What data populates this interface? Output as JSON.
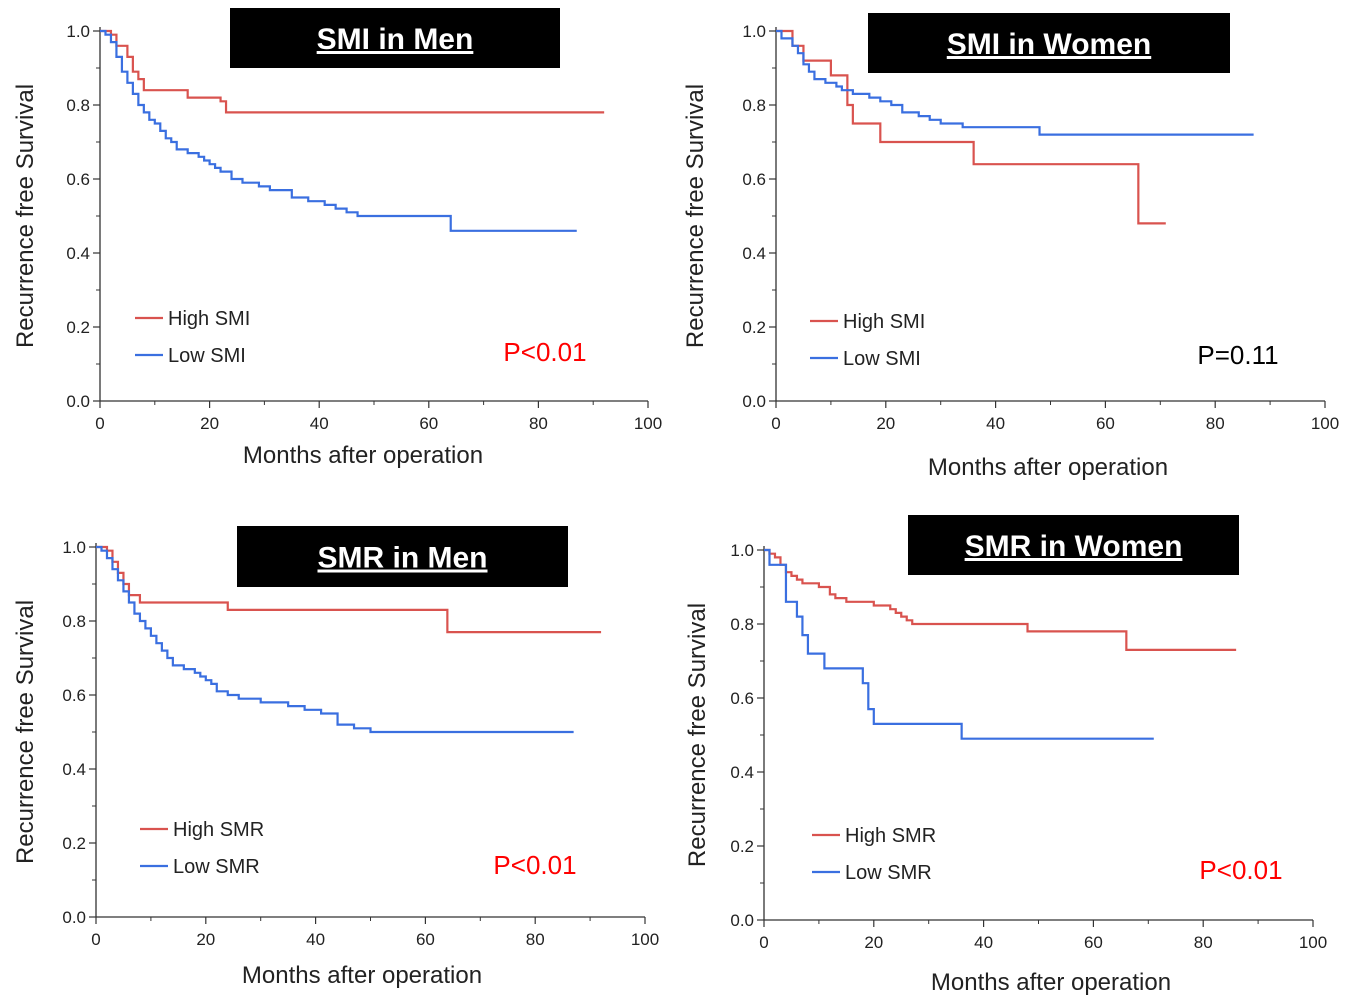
{
  "chart_data": [
    {
      "type": "line",
      "title": "SMI in Men",
      "xlabel": "Months after operation",
      "ylabel": "Recurrence free Survival",
      "xlim": [
        0,
        100
      ],
      "ylim": [
        0,
        1
      ],
      "xticks": [
        "0",
        "20",
        "40",
        "60",
        "80",
        "100"
      ],
      "yticks": [
        "0.0",
        "0.2",
        "0.4",
        "0.6",
        "0.8",
        "1.0"
      ],
      "legend_position": "lower-left",
      "p_value": "P<0.01",
      "p_color": "#ff0000",
      "series": [
        {
          "name": "High SMI",
          "color": "#d9534f",
          "x": [
            0,
            1,
            2,
            3,
            5,
            6,
            7,
            8,
            10,
            12,
            14,
            16,
            18,
            20,
            22,
            23,
            92
          ],
          "y": [
            1.0,
            1.0,
            0.99,
            0.96,
            0.93,
            0.89,
            0.87,
            0.84,
            0.84,
            0.84,
            0.84,
            0.82,
            0.82,
            0.82,
            0.81,
            0.78,
            0.78
          ]
        },
        {
          "name": "Low SMI",
          "color": "#3a6fe0",
          "x": [
            0,
            1,
            2,
            3,
            4,
            5,
            6,
            7,
            8,
            9,
            10,
            11,
            12,
            13,
            14,
            16,
            18,
            19,
            20,
            21,
            22,
            24,
            26,
            29,
            31,
            35,
            38,
            41,
            43,
            45,
            47,
            50,
            55,
            60,
            64,
            87
          ],
          "y": [
            1.0,
            0.99,
            0.97,
            0.93,
            0.89,
            0.86,
            0.83,
            0.8,
            0.78,
            0.76,
            0.75,
            0.73,
            0.71,
            0.7,
            0.68,
            0.67,
            0.66,
            0.65,
            0.64,
            0.63,
            0.62,
            0.6,
            0.59,
            0.58,
            0.57,
            0.55,
            0.54,
            0.53,
            0.52,
            0.51,
            0.5,
            0.5,
            0.5,
            0.5,
            0.46,
            0.46
          ]
        }
      ]
    },
    {
      "type": "line",
      "title": "SMI in Women",
      "xlabel": "Months after operation",
      "ylabel": "Recurrence free Survival",
      "xlim": [
        0,
        100
      ],
      "ylim": [
        0,
        1
      ],
      "xticks": [
        "0",
        "20",
        "40",
        "60",
        "80",
        "100"
      ],
      "yticks": [
        "0.0",
        "0.2",
        "0.4",
        "0.6",
        "0.8",
        "1.0"
      ],
      "legend_position": "lower-left",
      "p_value": "P=0.11",
      "p_color": "#000000",
      "series": [
        {
          "name": "High SMI",
          "color": "#d9534f",
          "x": [
            0,
            3,
            5,
            8,
            10,
            12,
            13,
            14,
            17,
            19,
            24,
            36,
            50,
            66,
            71
          ],
          "y": [
            1.0,
            0.96,
            0.92,
            0.92,
            0.88,
            0.88,
            0.8,
            0.75,
            0.75,
            0.7,
            0.7,
            0.64,
            0.64,
            0.48,
            0.48
          ]
        },
        {
          "name": "Low SMI",
          "color": "#3a6fe0",
          "x": [
            0,
            1,
            3,
            4,
            5,
            6,
            7,
            9,
            11,
            12,
            14,
            17,
            19,
            21,
            23,
            26,
            28,
            30,
            34,
            40,
            48,
            87
          ],
          "y": [
            1.0,
            0.98,
            0.96,
            0.94,
            0.91,
            0.89,
            0.87,
            0.86,
            0.85,
            0.84,
            0.83,
            0.82,
            0.81,
            0.8,
            0.78,
            0.77,
            0.76,
            0.75,
            0.74,
            0.74,
            0.72,
            0.72
          ]
        }
      ]
    },
    {
      "type": "line",
      "title": "SMR in Men",
      "xlabel": "Months after operation",
      "ylabel": "Recurrence free Survival",
      "xlim": [
        0,
        100
      ],
      "ylim": [
        0,
        1
      ],
      "xticks": [
        "0",
        "20",
        "40",
        "60",
        "80",
        "100"
      ],
      "yticks": [
        "0.0",
        "0.2",
        "0.4",
        "0.6",
        "0.8",
        "1.0"
      ],
      "legend_position": "lower-left",
      "p_value": "P<0.01",
      "p_color": "#ff0000",
      "series": [
        {
          "name": "High SMR",
          "color": "#d9534f",
          "x": [
            0,
            1,
            2,
            3,
            4,
            5,
            6,
            8,
            10,
            24,
            45,
            64,
            92
          ],
          "y": [
            1.0,
            1.0,
            0.99,
            0.96,
            0.93,
            0.9,
            0.87,
            0.85,
            0.85,
            0.83,
            0.83,
            0.77,
            0.77
          ]
        },
        {
          "name": "Low SMR",
          "color": "#3a6fe0",
          "x": [
            0,
            1,
            2,
            3,
            4,
            5,
            6,
            7,
            8,
            9,
            10,
            11,
            12,
            13,
            14,
            16,
            18,
            19,
            20,
            21,
            22,
            24,
            26,
            30,
            35,
            38,
            41,
            44,
            47,
            50,
            87
          ],
          "y": [
            1.0,
            0.99,
            0.97,
            0.94,
            0.91,
            0.88,
            0.85,
            0.82,
            0.8,
            0.78,
            0.76,
            0.74,
            0.72,
            0.7,
            0.68,
            0.67,
            0.66,
            0.65,
            0.64,
            0.63,
            0.61,
            0.6,
            0.59,
            0.58,
            0.57,
            0.56,
            0.55,
            0.52,
            0.51,
            0.5,
            0.5
          ]
        }
      ]
    },
    {
      "type": "line",
      "title": "SMR in Women",
      "xlabel": "Months after operation",
      "ylabel": "Recurrence free Survival",
      "xlim": [
        0,
        100
      ],
      "ylim": [
        0,
        1
      ],
      "xticks": [
        "0",
        "20",
        "40",
        "60",
        "80",
        "100"
      ],
      "yticks": [
        "0.0",
        "0.2",
        "0.4",
        "0.6",
        "0.8",
        "1.0"
      ],
      "legend_position": "lower-left",
      "p_value": "P<0.01",
      "p_color": "#ff0000",
      "series": [
        {
          "name": "High SMR",
          "color": "#d9534f",
          "x": [
            0,
            1,
            2,
            3,
            4,
            5,
            6,
            7,
            10,
            12,
            13,
            15,
            18,
            20,
            23,
            24,
            25,
            26,
            27,
            30,
            33,
            36,
            48,
            55,
            60,
            66,
            86
          ],
          "y": [
            1.0,
            0.99,
            0.98,
            0.96,
            0.94,
            0.93,
            0.92,
            0.91,
            0.9,
            0.88,
            0.87,
            0.86,
            0.86,
            0.85,
            0.84,
            0.83,
            0.82,
            0.81,
            0.8,
            0.8,
            0.8,
            0.8,
            0.78,
            0.78,
            0.78,
            0.73,
            0.73
          ]
        },
        {
          "name": "Low SMR",
          "color": "#3a6fe0",
          "x": [
            0,
            1,
            4,
            6,
            7,
            8,
            11,
            16,
            18,
            19,
            20,
            26,
            36,
            71
          ],
          "y": [
            1.0,
            0.96,
            0.86,
            0.82,
            0.77,
            0.72,
            0.68,
            0.68,
            0.64,
            0.57,
            0.53,
            0.53,
            0.49,
            0.49
          ]
        }
      ]
    }
  ]
}
